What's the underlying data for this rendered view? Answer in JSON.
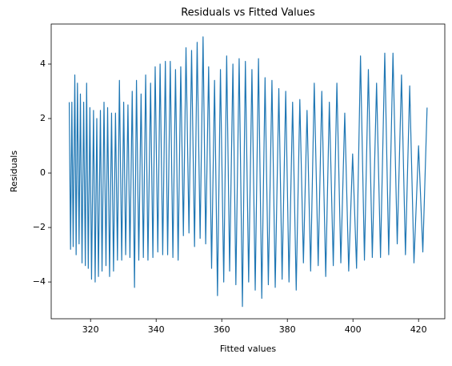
{
  "chart_data": {
    "type": "line",
    "title": "Residuals vs Fitted Values",
    "xlabel": "Fitted values",
    "ylabel": "Residuals",
    "color": "#1f77b4",
    "x": [
      313.5,
      313.9,
      314.3,
      314.7,
      315.2,
      315.6,
      316.0,
      316.5,
      316.9,
      317.4,
      317.9,
      318.4,
      318.8,
      319.3,
      319.8,
      320.3,
      320.9,
      321.4,
      321.9,
      322.4,
      323.0,
      323.5,
      324.1,
      324.7,
      325.2,
      325.8,
      326.4,
      327.0,
      327.6,
      328.2,
      328.8,
      329.5,
      330.1,
      330.7,
      331.4,
      332.0,
      332.7,
      333.4,
      334.0,
      334.7,
      335.4,
      336.1,
      336.8,
      337.5,
      338.3,
      339.0,
      339.7,
      340.5,
      341.2,
      342.0,
      342.8,
      343.5,
      344.3,
      345.1,
      345.9,
      346.7,
      347.5,
      348.3,
      349.1,
      350.0,
      350.8,
      351.7,
      352.5,
      353.4,
      354.3,
      355.1,
      356.0,
      356.9,
      357.8,
      358.7,
      359.6,
      360.6,
      361.5,
      362.4,
      363.4,
      364.3,
      365.3,
      366.3,
      367.2,
      368.2,
      369.2,
      370.2,
      371.2,
      372.2,
      373.2,
      374.2,
      375.3,
      376.3,
      377.4,
      378.4,
      379.5,
      380.5,
      381.6,
      382.7,
      383.8,
      384.9,
      386.0,
      387.1,
      388.2,
      389.4,
      390.5,
      391.7,
      392.8,
      394.0,
      395.1,
      396.3,
      397.5,
      398.7,
      399.9,
      401.1,
      402.3,
      403.5,
      404.7,
      405.9,
      407.2,
      408.4,
      409.7,
      410.9,
      412.2,
      413.5,
      414.8,
      416.0,
      417.3,
      418.6,
      420.0,
      421.3,
      422.6
    ],
    "values": [
      2.6,
      -2.8,
      2.6,
      -2.7,
      3.6,
      -3.0,
      3.3,
      -2.6,
      2.9,
      -3.3,
      2.6,
      -3.4,
      3.3,
      -3.5,
      2.4,
      -3.9,
      2.3,
      -4.0,
      2.0,
      -3.8,
      2.3,
      -3.6,
      2.6,
      -3.4,
      2.4,
      -3.8,
      2.2,
      -3.6,
      2.2,
      -3.2,
      3.4,
      -3.2,
      2.6,
      -3.0,
      2.5,
      -3.1,
      3.0,
      -4.2,
      3.4,
      -3.2,
      2.9,
      -3.1,
      3.6,
      -3.2,
      3.3,
      -3.1,
      3.9,
      -2.9,
      4.0,
      -3.0,
      4.1,
      -3.0,
      4.1,
      -3.1,
      3.8,
      -3.2,
      3.9,
      -2.3,
      4.6,
      -2.2,
      4.5,
      -2.7,
      4.8,
      -2.4,
      5.0,
      -2.6,
      3.9,
      -3.5,
      3.4,
      -4.5,
      3.8,
      -4.0,
      4.3,
      -3.6,
      4.0,
      -4.1,
      4.2,
      -4.9,
      4.1,
      -4.0,
      3.8,
      -4.3,
      4.2,
      -4.6,
      3.5,
      -4.1,
      3.4,
      -4.2,
      3.1,
      -3.9,
      3.0,
      -4.0,
      2.6,
      -4.3,
      2.7,
      -3.3,
      2.3,
      -3.6,
      3.3,
      -3.4,
      3.0,
      -3.8,
      2.6,
      -3.4,
      3.3,
      -3.3,
      2.2,
      -3.6,
      0.7,
      -3.5,
      4.3,
      -3.2,
      3.8,
      -3.1,
      3.3,
      -3.1,
      4.4,
      -3.0,
      4.4,
      -2.6,
      3.6,
      -3.0,
      3.2,
      -3.3,
      1.0,
      -2.9,
      2.4
    ],
    "xlim": [
      308.0,
      428.0
    ],
    "xticks": [
      320,
      340,
      360,
      380,
      400,
      420
    ],
    "ylim": [
      -5.35,
      5.47
    ],
    "yticks": [
      {
        "value": -4,
        "label": "−4"
      },
      {
        "value": -2,
        "label": "−2"
      },
      0,
      2,
      4
    ]
  }
}
